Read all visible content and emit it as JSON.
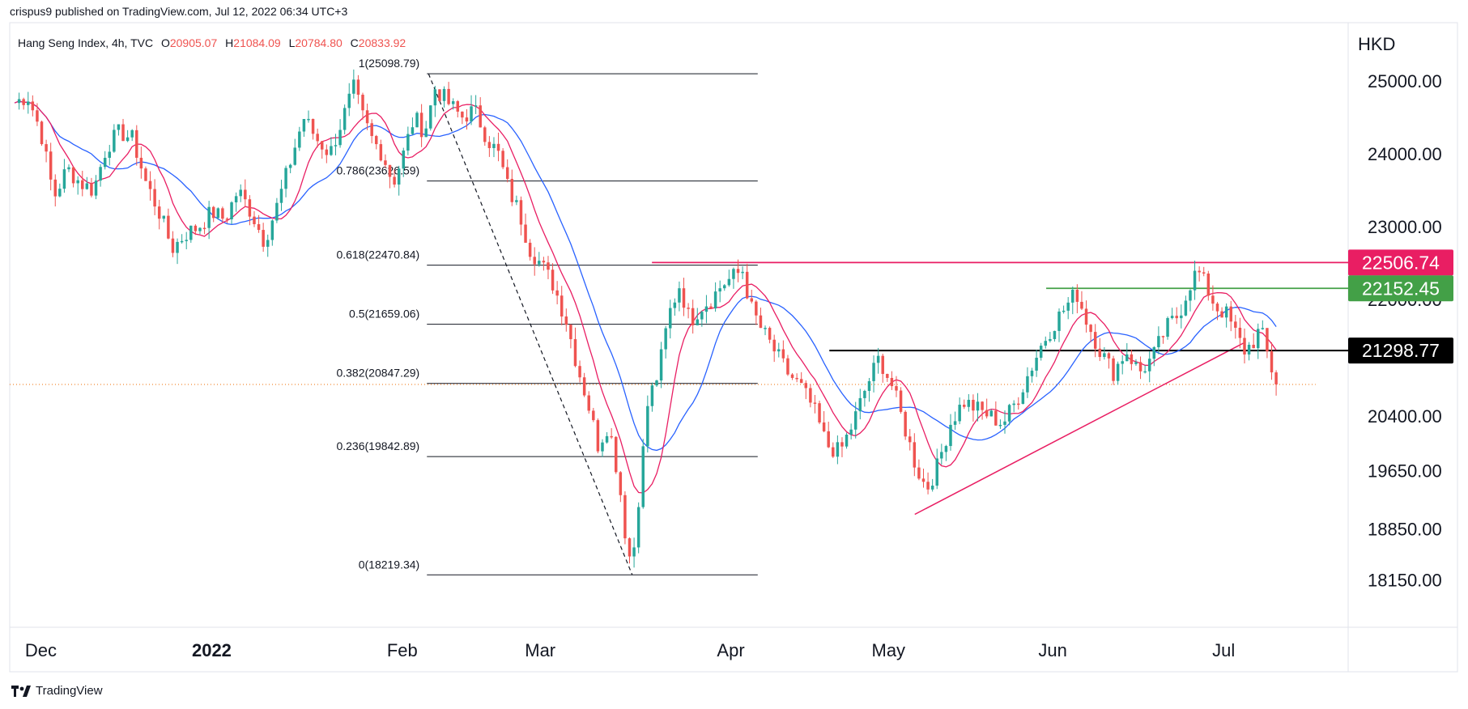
{
  "header": {
    "published": "crispus9 published on TradingView.com, Jul 12, 2022 06:34 UTC+3"
  },
  "legend": {
    "symbol": "Hang Seng Index, 4h, TVC",
    "o_label": "O",
    "o_value": "20905.07",
    "h_label": "H",
    "h_value": "21084.09",
    "l_label": "L",
    "l_value": "20784.80",
    "c_label": "C",
    "c_value": "20833.92"
  },
  "footer": {
    "brand": "TradingView",
    "logo_icon": "tradingview-logo-icon"
  },
  "colors": {
    "up": "#26a69a",
    "down": "#ef5350",
    "ma_fast": "#e91e63",
    "ma_slow": "#2962ff",
    "resistance": "#e91e63",
    "support_green": "#43a047",
    "support_black": "#000000",
    "fib": "#131722",
    "grid_border": "#e0e3eb",
    "last_price": "#ef6c00"
  },
  "chart_data": {
    "type": "candlestick",
    "title": "Hang Seng Index, 4h, TVC",
    "currency": "HKD",
    "ylim": [
      17500,
      25800
    ],
    "y_ticks": [
      "25000.00",
      "24000.00",
      "23000.00",
      "22000.00",
      "20400.00",
      "19650.00",
      "18850.00",
      "18150.00"
    ],
    "y_tick_values": [
      25000,
      24000,
      23000,
      22000,
      20400,
      19650,
      18850,
      18150
    ],
    "x_ticks": [
      {
        "label": "Dec",
        "bold": false,
        "t": 0.02
      },
      {
        "label": "2022",
        "bold": true,
        "t": 0.15
      },
      {
        "label": "Feb",
        "bold": false,
        "t": 0.295
      },
      {
        "label": "Mar",
        "bold": false,
        "t": 0.4
      },
      {
        "label": "Apr",
        "bold": false,
        "t": 0.545
      },
      {
        "label": "May",
        "bold": false,
        "t": 0.665
      },
      {
        "label": "Jun",
        "bold": false,
        "t": 0.79
      },
      {
        "label": "Jul",
        "bold": false,
        "t": 0.92
      }
    ],
    "fibonacci": [
      {
        "label": "1(25098.79)",
        "value": 25098.79
      },
      {
        "label": "0.786(23626.59)",
        "value": 23626.59
      },
      {
        "label": "0.618(22470.84)",
        "value": 22470.84
      },
      {
        "label": "0.5(21659.06)",
        "value": 21659.06
      },
      {
        "label": "0.382(20847.29)",
        "value": 20847.29
      },
      {
        "label": "0.236(19842.89)",
        "value": 19842.89
      },
      {
        "label": "0(18219.34)",
        "value": 18219.34
      }
    ],
    "levels": [
      {
        "label": "22506.74",
        "value": 22506.74,
        "color": "#e91e63",
        "t_start": 0.485
      },
      {
        "label": "22152.45",
        "value": 22152.45,
        "color": "#43a047",
        "t_start": 0.785
      },
      {
        "label": "21298.77",
        "value": 21298.77,
        "color": "#000000",
        "t_start": 0.62
      }
    ],
    "last_price": 20833.92,
    "trendline": [
      {
        "t": 0.685,
        "v": 19050
      },
      {
        "t": 0.935,
        "v": 21400
      }
    ],
    "fib_diagonal": [
      {
        "t": 0.315,
        "v": 25098.79
      },
      {
        "t": 0.47,
        "v": 18219.34
      }
    ],
    "path": [
      [
        0.0,
        24700
      ],
      [
        0.01,
        24800
      ],
      [
        0.02,
        24300
      ],
      [
        0.03,
        23400
      ],
      [
        0.04,
        23800
      ],
      [
        0.05,
        23600
      ],
      [
        0.06,
        23500
      ],
      [
        0.07,
        24100
      ],
      [
        0.08,
        24300
      ],
      [
        0.09,
        24200
      ],
      [
        0.1,
        23600
      ],
      [
        0.11,
        23200
      ],
      [
        0.12,
        22700
      ],
      [
        0.13,
        22900
      ],
      [
        0.14,
        23000
      ],
      [
        0.15,
        23200
      ],
      [
        0.16,
        23100
      ],
      [
        0.17,
        23500
      ],
      [
        0.18,
        23200
      ],
      [
        0.19,
        22800
      ],
      [
        0.2,
        23300
      ],
      [
        0.21,
        23900
      ],
      [
        0.22,
        24500
      ],
      [
        0.23,
        24200
      ],
      [
        0.24,
        24000
      ],
      [
        0.25,
        24500
      ],
      [
        0.258,
        24900
      ],
      [
        0.265,
        24500
      ],
      [
        0.272,
        24200
      ],
      [
        0.28,
        24000
      ],
      [
        0.288,
        23600
      ],
      [
        0.296,
        24000
      ],
      [
        0.304,
        24500
      ],
      [
        0.312,
        24300
      ],
      [
        0.32,
        24900
      ],
      [
        0.33,
        24700
      ],
      [
        0.34,
        24500
      ],
      [
        0.35,
        24600
      ],
      [
        0.36,
        24200
      ],
      [
        0.368,
        24000
      ],
      [
        0.376,
        23500
      ],
      [
        0.384,
        23200
      ],
      [
        0.392,
        22700
      ],
      [
        0.4,
        22500
      ],
      [
        0.41,
        22200
      ],
      [
        0.42,
        21700
      ],
      [
        0.428,
        21100
      ],
      [
        0.436,
        20600
      ],
      [
        0.444,
        20000
      ],
      [
        0.452,
        20300
      ],
      [
        0.46,
        19500
      ],
      [
        0.466,
        18600
      ],
      [
        0.47,
        18350
      ],
      [
        0.476,
        19500
      ],
      [
        0.482,
        20600
      ],
      [
        0.49,
        21000
      ],
      [
        0.498,
        21800
      ],
      [
        0.506,
        22200
      ],
      [
        0.514,
        21700
      ],
      [
        0.522,
        21900
      ],
      [
        0.53,
        22000
      ],
      [
        0.538,
        22200
      ],
      [
        0.546,
        22300
      ],
      [
        0.554,
        22400
      ],
      [
        0.56,
        21900
      ],
      [
        0.568,
        21600
      ],
      [
        0.578,
        21300
      ],
      [
        0.588,
        21000
      ],
      [
        0.598,
        20800
      ],
      [
        0.608,
        20500
      ],
      [
        0.618,
        20000
      ],
      [
        0.628,
        19900
      ],
      [
        0.638,
        20300
      ],
      [
        0.648,
        20800
      ],
      [
        0.658,
        21200
      ],
      [
        0.668,
        20800
      ],
      [
        0.678,
        20200
      ],
      [
        0.686,
        19700
      ],
      [
        0.694,
        19400
      ],
      [
        0.702,
        19700
      ],
      [
        0.712,
        20300
      ],
      [
        0.722,
        20600
      ],
      [
        0.732,
        20500
      ],
      [
        0.742,
        20400
      ],
      [
        0.752,
        20300
      ],
      [
        0.762,
        20600
      ],
      [
        0.772,
        21000
      ],
      [
        0.782,
        21400
      ],
      [
        0.792,
        21700
      ],
      [
        0.8,
        21900
      ],
      [
        0.808,
        22100
      ],
      [
        0.816,
        21700
      ],
      [
        0.826,
        21300
      ],
      [
        0.836,
        21000
      ],
      [
        0.846,
        21300
      ],
      [
        0.856,
        21000
      ],
      [
        0.866,
        21200
      ],
      [
        0.876,
        21600
      ],
      [
        0.886,
        21800
      ],
      [
        0.894,
        22200
      ],
      [
        0.9,
        22400
      ],
      [
        0.906,
        22200
      ],
      [
        0.914,
        21900
      ],
      [
        0.922,
        21800
      ],
      [
        0.93,
        21500
      ],
      [
        0.936,
        21300
      ],
      [
        0.942,
        21400
      ],
      [
        0.948,
        21600
      ],
      [
        0.954,
        21200
      ],
      [
        0.96,
        20830
      ]
    ]
  }
}
